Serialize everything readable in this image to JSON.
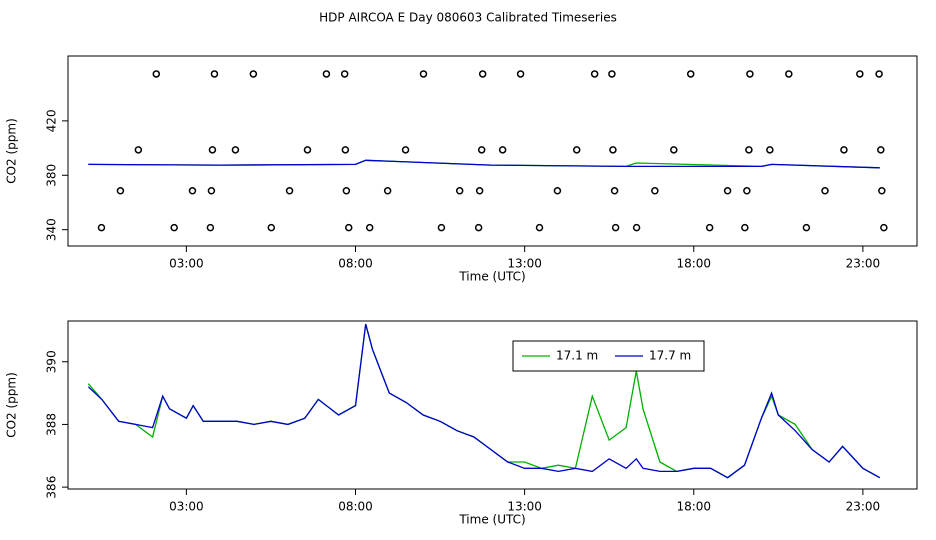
{
  "chart_data": [
    {
      "type": "line",
      "title": "HDP AIRCOA E  Day 080603  Calibrated Timeseries",
      "x_label": "Time (UTC)",
      "y_label": "CO2 (ppm)",
      "xlim": [
        -0.5,
        24.6
      ],
      "ylim": [
        328,
        467.7
      ],
      "xticks": [
        {
          "value": 3,
          "label": "03:00"
        },
        {
          "value": 8,
          "label": "08:00"
        },
        {
          "value": 13,
          "label": "13:00"
        },
        {
          "value": 18,
          "label": "18:00"
        },
        {
          "value": 23,
          "label": "23:00"
        }
      ],
      "yticks": [
        340,
        380,
        420
      ],
      "series": [
        {
          "type": "scatter",
          "color": "#000000",
          "x": [
            2.11,
            3.83,
            4.98,
            7.14,
            7.68,
            10.01,
            11.76,
            12.88,
            15.07,
            15.58,
            17.91,
            19.66,
            20.81,
            22.91,
            23.48,
            1.58,
            3.77,
            4.45,
            6.58,
            7.7,
            9.48,
            11.73,
            12.35,
            14.54,
            15.61,
            17.41,
            19.63,
            20.25,
            22.44,
            23.53,
            1.05,
            3.18,
            3.74,
            6.05,
            7.73,
            8.95,
            11.08,
            11.67,
            13.97,
            15.66,
            16.85,
            19.0,
            19.57,
            21.88,
            23.56,
            0.49,
            2.64,
            3.71,
            5.51,
            7.8,
            8.42,
            10.54,
            11.64,
            13.44,
            15.69,
            16.31,
            18.47,
            19.51,
            21.33,
            23.62
          ],
          "values": [
            454.5,
            454.5,
            454.5,
            454.5,
            454.5,
            454.5,
            454.5,
            454.5,
            454.5,
            454.5,
            454.5,
            454.5,
            454.5,
            454.5,
            454.5,
            398.7,
            398.7,
            398.7,
            398.7,
            398.7,
            398.7,
            398.7,
            398.7,
            398.7,
            398.7,
            398.7,
            398.7,
            398.7,
            398.7,
            398.7,
            368.6,
            368.6,
            368.6,
            368.6,
            368.6,
            368.6,
            368.6,
            368.6,
            368.6,
            368.6,
            368.6,
            368.6,
            368.6,
            368.6,
            368.6,
            341.5,
            341.5,
            341.5,
            341.5,
            341.5,
            341.5,
            341.5,
            341.5,
            341.5,
            341.5,
            341.5,
            341.5,
            341.5,
            341.5,
            341.5
          ]
        },
        {
          "type": "line",
          "color": "#00b000",
          "x": [
            0.1,
            4,
            8,
            8.3,
            12,
            16,
            16.3,
            20,
            20.3,
            23.5
          ],
          "values": [
            388,
            387.5,
            388,
            391,
            387.5,
            386.5,
            389,
            386.5,
            388,
            385.5
          ]
        },
        {
          "type": "line",
          "color": "#0000cc",
          "x": [
            0.1,
            4,
            8,
            8.3,
            12,
            16,
            16.3,
            20,
            20.3,
            23.5
          ],
          "values": [
            388,
            387.5,
            388,
            391,
            387.5,
            386.5,
            386.5,
            386.5,
            388,
            385.5
          ]
        }
      ]
    },
    {
      "type": "line",
      "x_label": "Time (UTC)",
      "y_label": "CO2 (ppm)",
      "xlim": [
        -0.5,
        24.6
      ],
      "ylim": [
        385.94,
        391.3
      ],
      "xticks": [
        {
          "value": 3,
          "label": "03:00"
        },
        {
          "value": 8,
          "label": "08:00"
        },
        {
          "value": 13,
          "label": "13:00"
        },
        {
          "value": 18,
          "label": "18:00"
        },
        {
          "value": 23,
          "label": "23:00"
        }
      ],
      "yticks": [
        386,
        388,
        390
      ],
      "legend": "top",
      "x": [
        0.1,
        0.5,
        1.0,
        1.5,
        2.0,
        2.3,
        2.5,
        3.0,
        3.2,
        3.5,
        4.0,
        4.5,
        5.0,
        5.5,
        6.0,
        6.5,
        6.9,
        7.5,
        8.0,
        8.3,
        8.5,
        9.0,
        9.5,
        10.0,
        10.5,
        11.0,
        11.5,
        12.0,
        12.5,
        13.0,
        13.5,
        14.0,
        14.5,
        15.0,
        15.5,
        16.0,
        16.3,
        16.5,
        17.0,
        17.5,
        18.0,
        18.5,
        19.0,
        19.5,
        20.0,
        20.3,
        20.5,
        21.0,
        21.5,
        22.0,
        22.4,
        23.0,
        23.5
      ],
      "series": [
        {
          "name": "17.1 m",
          "color": "#00b000",
          "values": [
            389.3,
            388.8,
            388.1,
            388.0,
            387.6,
            388.9,
            388.5,
            388.2,
            388.6,
            388.1,
            388.1,
            388.1,
            388.0,
            388.1,
            388.0,
            388.2,
            388.8,
            388.3,
            388.6,
            391.2,
            390.4,
            389.0,
            388.7,
            388.3,
            388.1,
            387.8,
            387.6,
            387.2,
            386.8,
            386.8,
            386.6,
            386.7,
            386.6,
            388.9,
            387.5,
            387.9,
            389.7,
            388.5,
            386.8,
            386.5,
            386.6,
            386.6,
            386.3,
            386.7,
            388.2,
            388.9,
            388.3,
            388.0,
            387.2,
            386.8,
            387.3,
            386.6,
            386.3
          ]
        },
        {
          "name": "17.7 m",
          "color": "#0000cc",
          "values": [
            389.2,
            388.8,
            388.1,
            388.0,
            387.9,
            388.9,
            388.5,
            388.2,
            388.6,
            388.1,
            388.1,
            388.1,
            388.0,
            388.1,
            388.0,
            388.2,
            388.8,
            388.3,
            388.6,
            391.2,
            390.4,
            389.0,
            388.7,
            388.3,
            388.1,
            387.8,
            387.6,
            387.2,
            386.8,
            386.6,
            386.6,
            386.5,
            386.6,
            386.5,
            386.9,
            386.6,
            386.9,
            386.6,
            386.5,
            386.5,
            386.6,
            386.6,
            386.3,
            386.7,
            388.2,
            389.0,
            388.3,
            387.8,
            387.2,
            386.8,
            387.3,
            386.6,
            386.3
          ]
        }
      ]
    }
  ]
}
